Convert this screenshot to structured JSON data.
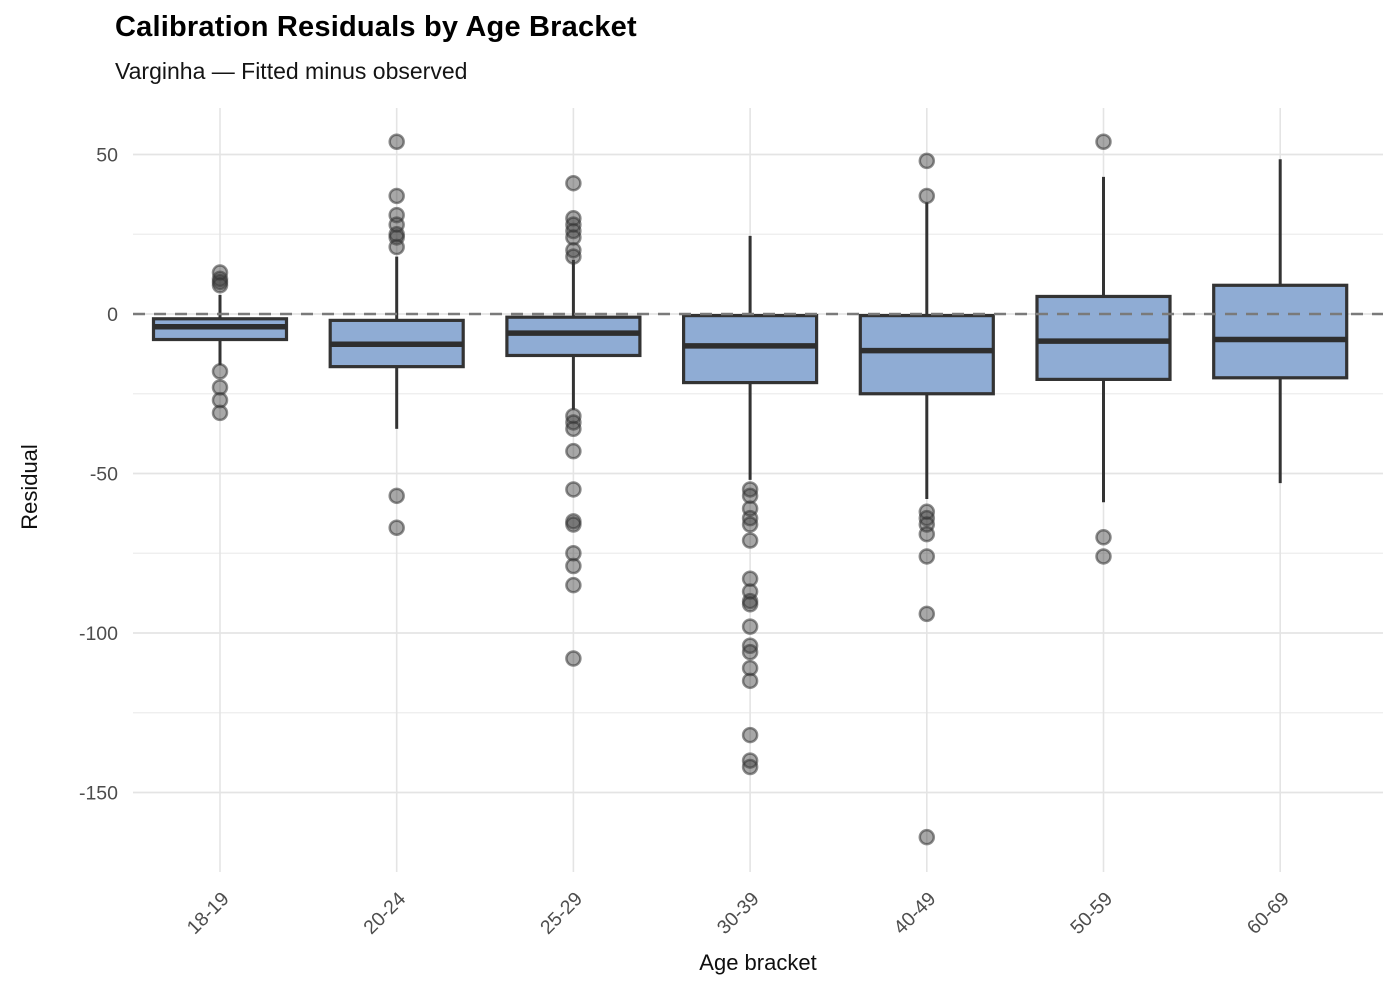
{
  "header": {
    "title": "Calibration Residuals by Age Bracket",
    "subtitle": "Varginha — Fitted minus observed"
  },
  "chart_data": {
    "type": "boxplot",
    "title": "Calibration Residuals by Age Bracket",
    "subtitle": "Varginha — Fitted minus observed",
    "xlabel": "Age bracket",
    "ylabel": "Residual",
    "ylim": [
      -176,
      64
    ],
    "y_major_ticks": [
      50,
      0,
      -50,
      -100,
      -150
    ],
    "y_minor_ticks": [
      25,
      -25,
      -75,
      -125
    ],
    "grid": "on",
    "legend": "none",
    "reference_line": {
      "y": 0,
      "style": "dashed",
      "color": "#7a7a7a"
    },
    "categories": [
      "18-19",
      "20-24",
      "25-29",
      "30-39",
      "40-49",
      "50-59",
      "60-69"
    ],
    "series": [
      {
        "category": "18-19",
        "whisker_low": -16,
        "q1": -8,
        "median": -4,
        "q3": -1.5,
        "whisker_high": 6,
        "outliers": [
          13,
          11,
          10,
          9,
          -18,
          -23,
          -27,
          -31
        ]
      },
      {
        "category": "20-24",
        "whisker_low": -36,
        "q1": -16.5,
        "median": -9.5,
        "q3": -2,
        "whisker_high": 18,
        "outliers": [
          54,
          37,
          31,
          28,
          25,
          24,
          21,
          -57,
          -67
        ]
      },
      {
        "category": "25-29",
        "whisker_low": -30,
        "q1": -13,
        "median": -6,
        "q3": -1,
        "whisker_high": 17,
        "outliers": [
          41,
          30,
          28,
          26,
          24,
          20,
          18,
          -32,
          -34,
          -36,
          -43,
          -55,
          -65,
          -66,
          -75,
          -79,
          -85,
          -108
        ]
      },
      {
        "category": "30-39",
        "whisker_low": -52,
        "q1": -21.5,
        "median": -10,
        "q3": -0.5,
        "whisker_high": 24.5,
        "outliers": [
          -55,
          -57,
          -61,
          -64,
          -66,
          -71,
          -83,
          -87,
          -90,
          -91,
          -98,
          -104,
          -106,
          -111,
          -115,
          -132,
          -140,
          -142
        ]
      },
      {
        "category": "40-49",
        "whisker_low": -58,
        "q1": -25,
        "median": -11.5,
        "q3": -0.5,
        "whisker_high": 35,
        "outliers": [
          48,
          37,
          -62,
          -64,
          -66,
          -69,
          -76,
          -94,
          -164
        ]
      },
      {
        "category": "50-59",
        "whisker_low": -59,
        "q1": -20.5,
        "median": -8.5,
        "q3": 5.5,
        "whisker_high": 43,
        "outliers": [
          54,
          -70,
          -76
        ]
      },
      {
        "category": "60-69",
        "whisker_low": -53,
        "q1": -20,
        "median": -8,
        "q3": 9,
        "whisker_high": 48.5,
        "outliers": []
      }
    ],
    "colors": {
      "box_fill": "#8FACD4",
      "box_border": "#333333",
      "median": "#2e2e2e",
      "whisker": "#333333",
      "outlier_fill": "#3f3f3f",
      "outlier_stroke": "#333333",
      "grid_major": "#e4e4e4",
      "grid_minor": "#ededed",
      "zero_line": "#7a7a7a",
      "tick_label": "#4d4d4d",
      "background": "#ffffff"
    }
  }
}
